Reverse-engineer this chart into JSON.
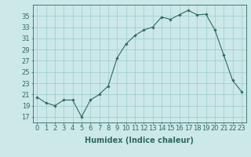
{
  "x": [
    0,
    1,
    2,
    3,
    4,
    5,
    6,
    7,
    8,
    9,
    10,
    11,
    12,
    13,
    14,
    15,
    16,
    17,
    18,
    19,
    20,
    21,
    22,
    23
  ],
  "y": [
    20.5,
    19.5,
    19.0,
    20.0,
    20.0,
    17.0,
    20.0,
    21.0,
    22.5,
    27.5,
    30.0,
    31.5,
    32.5,
    33.0,
    34.8,
    34.4,
    35.2,
    36.0,
    35.2,
    35.3,
    32.5,
    28.0,
    23.5,
    21.5
  ],
  "line_color": "#2e6b5e",
  "marker_color": "#2e6b5e",
  "bg_color": "#cce8e8",
  "grid_color": "#99cccc",
  "xlabel": "Humidex (Indice chaleur)",
  "yticks": [
    17,
    19,
    21,
    23,
    25,
    27,
    29,
    31,
    33,
    35
  ],
  "xticks": [
    0,
    1,
    2,
    3,
    4,
    5,
    6,
    7,
    8,
    9,
    10,
    11,
    12,
    13,
    14,
    15,
    16,
    17,
    18,
    19,
    20,
    21,
    22,
    23
  ],
  "ylim": [
    16.0,
    37.0
  ],
  "xlim": [
    -0.5,
    23.5
  ],
  "font_color": "#2e6b5e",
  "xlabel_fontsize": 7,
  "tick_fontsize": 6
}
